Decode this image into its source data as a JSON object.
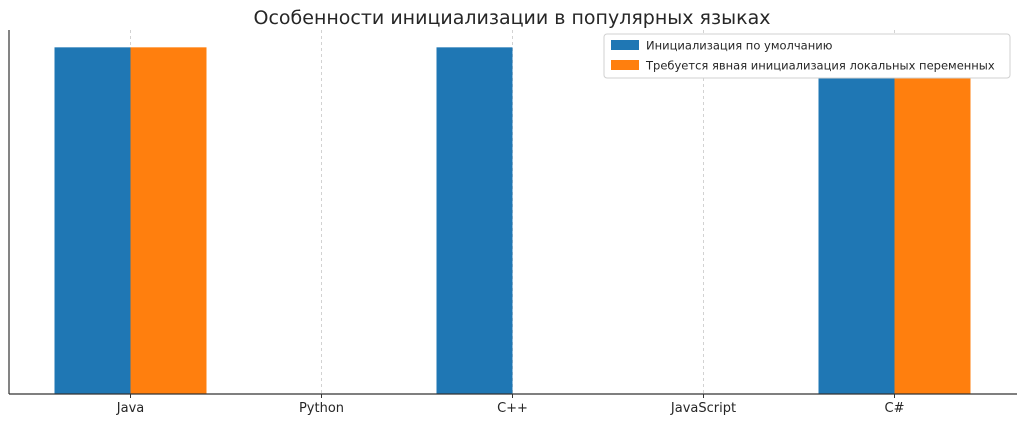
{
  "chart_data": {
    "type": "bar",
    "title": "Особенности инициализации в популярных языках",
    "xlabel": "",
    "ylabel": "",
    "categories": [
      "Java",
      "Python",
      "C++",
      "JavaScript",
      "C#"
    ],
    "series": [
      {
        "name": "Инициализация по умолчанию",
        "values": [
          1,
          0,
          1,
          0,
          1
        ],
        "color": "#1f77b4"
      },
      {
        "name": "Требуется явная инициализация локальных переменных",
        "values": [
          1,
          0,
          0,
          0,
          1
        ],
        "color": "#ff7f0e"
      }
    ],
    "ylim": [
      0,
      1.05
    ],
    "grid": "x-dashed",
    "legend": "top-right",
    "y_ticks": "hidden"
  }
}
